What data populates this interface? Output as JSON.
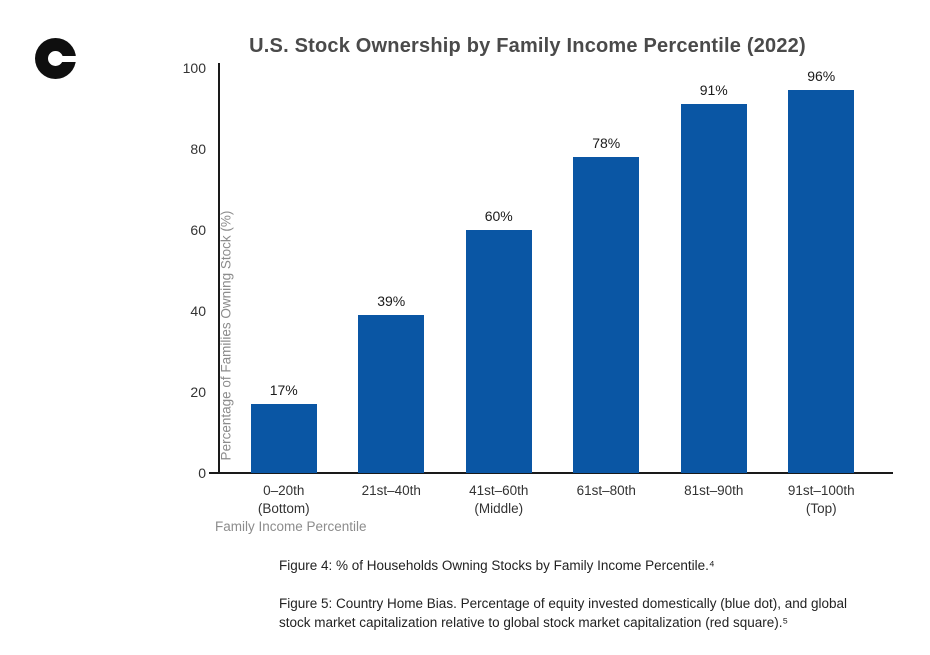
{
  "brand": {
    "logo_name": "c-logo",
    "logo_color": "#0f0f0f"
  },
  "chart_data": {
    "type": "bar",
    "title": "U.S. Stock Ownership by Family Income Percentile (2022)",
    "categories": [
      "0–20th\n(Bottom)",
      "21st–40th",
      "41st–60th\n(Middle)",
      "61st–80th",
      "81st–90th",
      "91st–100th\n(Top)"
    ],
    "values": [
      17,
      39,
      60,
      78,
      91,
      96
    ],
    "data_labels": [
      "17%",
      "39%",
      "60%",
      "78%",
      "91%",
      "96%"
    ],
    "xlabel": "Family Income Percentile",
    "ylabel": "Percentage of Families Owning Stock (%)",
    "ylim": [
      0,
      100
    ],
    "yticks": [
      0,
      20,
      40,
      60,
      80,
      100
    ],
    "grid": false,
    "legend_position": "none",
    "bar_color": "#0a56a4",
    "title_color": "#4a4a4a",
    "tick_color": "#333333",
    "muted_label_color": "#8c8c8c",
    "axis_line_color": "#1a1a1a"
  },
  "captions": {
    "figure4": "Figure 4: % of Households Owning Stocks by Family Income Percentile.⁴",
    "figure5": "Figure 5: Country Home Bias. Percentage of equity invested domestically (blue dot), and global stock market capitalization relative to global stock market capitalization (red square).⁵"
  }
}
